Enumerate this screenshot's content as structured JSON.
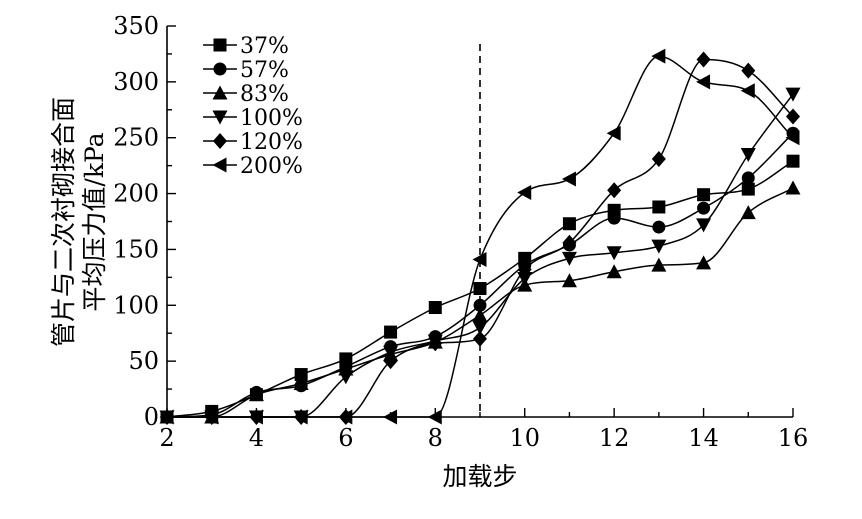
{
  "chart_data": {
    "type": "line",
    "xlabel": "加载步",
    "ylabel": "管片与二次衬砌接合面平均压力值/kPa",
    "ylabel_lines": [
      "管片与二次衬砌接合面",
      "平均压力值/kPa"
    ],
    "xlim": [
      2,
      16
    ],
    "ylim": [
      0,
      350
    ],
    "xticks": [
      2,
      4,
      6,
      8,
      10,
      12,
      14,
      16
    ],
    "yticks": [
      0,
      50,
      100,
      150,
      200,
      250,
      300,
      350
    ],
    "vline_x": 9,
    "grid": false,
    "legend_position": "top-left",
    "x": [
      2,
      3,
      4,
      5,
      6,
      7,
      8,
      9,
      10,
      11,
      12,
      13,
      14,
      15,
      16
    ],
    "series": [
      {
        "name": "37%",
        "marker": "square",
        "values": [
          0,
          5,
          20,
          38,
          52,
          76,
          98,
          115,
          142,
          173,
          185,
          188,
          199,
          204,
          229
        ]
      },
      {
        "name": "57%",
        "marker": "circle",
        "values": [
          0,
          2,
          22,
          28,
          45,
          63,
          72,
          100,
          136,
          154,
          178,
          170,
          187,
          214,
          254
        ]
      },
      {
        "name": "83%",
        "marker": "triangle-up",
        "values": [
          0,
          0,
          20,
          30,
          43,
          56,
          67,
          91,
          118,
          122,
          130,
          136,
          138,
          183,
          205
        ]
      },
      {
        "name": "100%",
        "marker": "triangle-down",
        "values": [
          0,
          0,
          0,
          0,
          36,
          58,
          68,
          80,
          124,
          142,
          147,
          153,
          172,
          235,
          289
        ]
      },
      {
        "name": "120%",
        "marker": "diamond",
        "values": [
          0,
          0,
          0,
          0,
          0,
          50,
          66,
          70,
          132,
          156,
          203,
          231,
          320,
          310,
          269
        ]
      },
      {
        "name": "200%",
        "marker": "triangle-left",
        "values": [
          0,
          0,
          0,
          0,
          0,
          0,
          0,
          141,
          201,
          213,
          254,
          323,
          300,
          292,
          250
        ]
      }
    ]
  }
}
